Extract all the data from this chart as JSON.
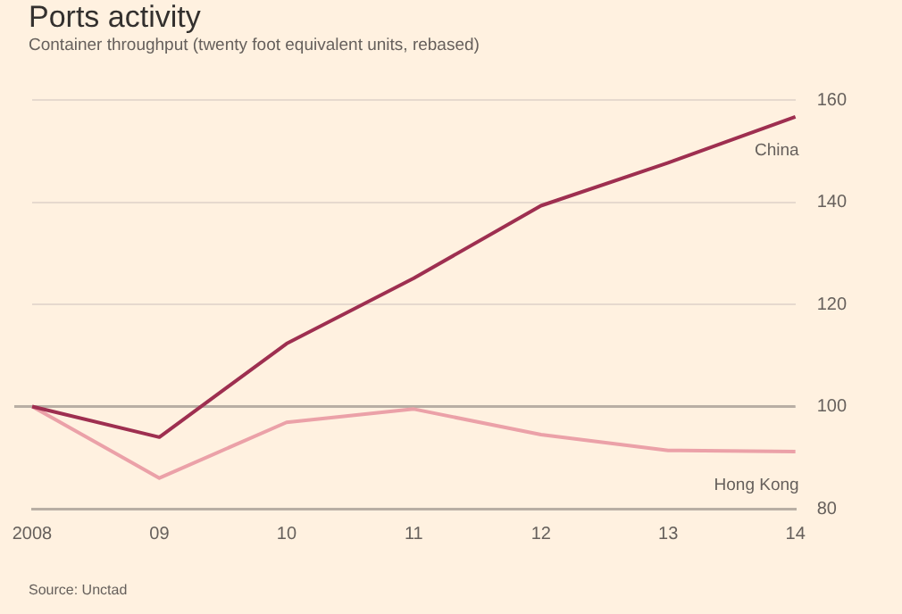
{
  "chart_data": {
    "type": "line",
    "title": "Ports activity",
    "subtitle": "Container throughput (twenty foot equivalent units, rebased)",
    "categories": [
      "2008",
      "09",
      "10",
      "11",
      "12",
      "13",
      "14"
    ],
    "series": [
      {
        "name": "China",
        "color": "#9e2f50",
        "values": [
          100,
          94,
          112.3,
          125.1,
          139.3,
          147.7,
          156.7
        ]
      },
      {
        "name": "Hong Kong",
        "color": "#eba1a8",
        "values": [
          100,
          86,
          96.9,
          99.5,
          94.5,
          91.4,
          91.2
        ]
      }
    ],
    "ylim": [
      80,
      160
    ],
    "yticks": [
      80,
      100,
      120,
      140,
      160
    ],
    "grid": "y",
    "ref_lines": [
      {
        "axis": "y",
        "value": 100,
        "color": "#b8aea4"
      }
    ],
    "annotations": [
      "Source: Unctad"
    ]
  }
}
